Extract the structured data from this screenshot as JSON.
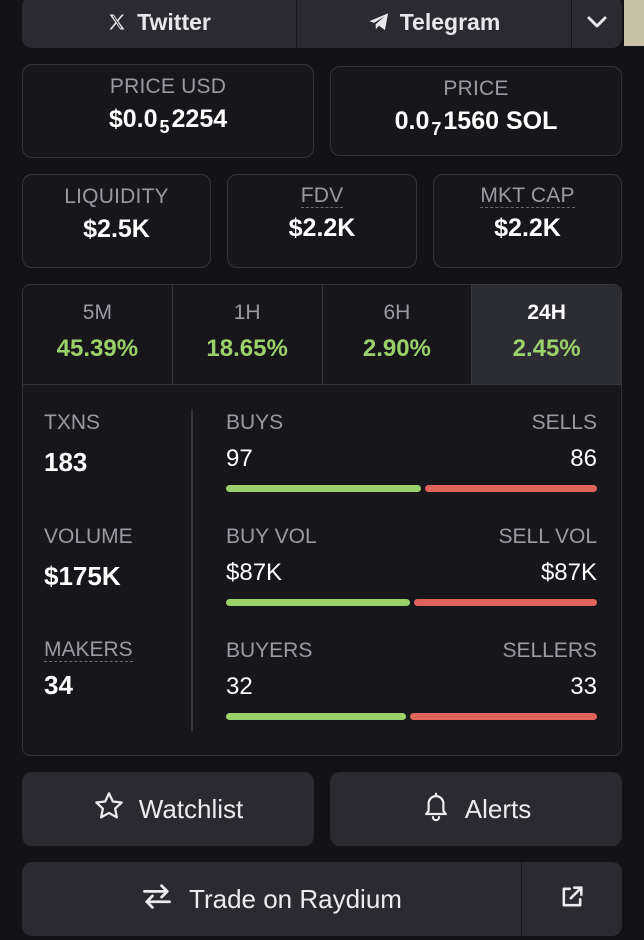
{
  "social": {
    "twitter_label": "Twitter",
    "telegram_label": "Telegram"
  },
  "price_usd": {
    "label": "PRICE USD",
    "prefix": "$0.0",
    "zeros": "5",
    "digits": "2254"
  },
  "price_native": {
    "label": "PRICE",
    "prefix": "0.0",
    "zeros": "7",
    "digits": "1560 SOL"
  },
  "liquidity": {
    "label": "LIQUIDITY",
    "value": "$2.5K"
  },
  "fdv": {
    "label": "FDV",
    "value": "$2.2K"
  },
  "mkt_cap": {
    "label": "MKT CAP",
    "value": "$2.2K"
  },
  "timeframes": [
    {
      "label": "5M",
      "change": "45.39%"
    },
    {
      "label": "1H",
      "change": "18.65%"
    },
    {
      "label": "6H",
      "change": "2.90%"
    },
    {
      "label": "24H",
      "change": "2.45%",
      "active": true
    }
  ],
  "stats": {
    "txns": {
      "label": "TXNS",
      "value": "183"
    },
    "volume": {
      "label": "VOLUME",
      "value": "$175K"
    },
    "makers": {
      "label": "MAKERS",
      "value": "34"
    },
    "buys_sells": {
      "left_label": "BUYS",
      "right_label": "SELLS",
      "left_value": "97",
      "right_value": "86",
      "left_fraction": 0.53
    },
    "buy_sell_vol": {
      "left_label": "BUY VOL",
      "right_label": "SELL VOL",
      "left_value": "$87K",
      "right_value": "$87K",
      "left_fraction": 0.5
    },
    "buyers_sellers": {
      "left_label": "BUYERS",
      "right_label": "SELLERS",
      "left_value": "32",
      "right_value": "33",
      "left_fraction": 0.49
    }
  },
  "actions": {
    "watchlist_label": "Watchlist",
    "alerts_label": "Alerts",
    "trade_label": "Trade on Raydium"
  },
  "colors": {
    "positive": "#9bd16b",
    "negative": "#e0645c",
    "background": "#131316",
    "button": "#2a2a30"
  },
  "icons": [
    "x-logo-icon",
    "telegram-icon",
    "chevron-down-icon",
    "star-icon",
    "bell-icon",
    "swap-arrows-icon",
    "external-link-icon"
  ]
}
